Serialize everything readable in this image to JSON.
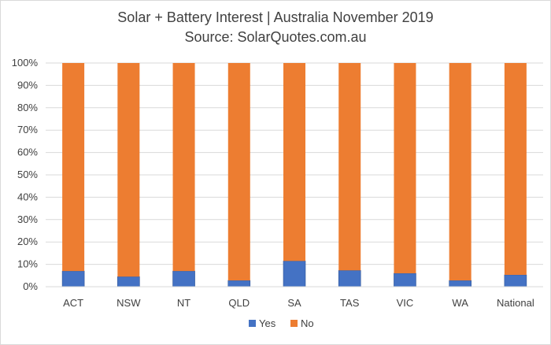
{
  "chart_data": {
    "type": "bar",
    "stacked": true,
    "normalized": true,
    "title": "Solar + Battery Interest  | Australia November 2019",
    "subtitle": "Source: SolarQuotes.com.au",
    "xlabel": "",
    "ylabel": "",
    "categories": [
      "ACT",
      "NSW",
      "NT",
      "QLD",
      "SA",
      "TAS",
      "VIC",
      "WA",
      "National"
    ],
    "series": [
      {
        "name": "Yes",
        "color": "#4472c4",
        "values": [
          7.0,
          4.5,
          7.0,
          2.8,
          11.5,
          7.3,
          6.0,
          2.8,
          5.3
        ]
      },
      {
        "name": "No",
        "color": "#ed7d31",
        "values": [
          93.0,
          95.5,
          93.0,
          97.2,
          88.5,
          92.7,
          94.0,
          97.2,
          94.7
        ]
      }
    ],
    "ylim": [
      0,
      100
    ],
    "yticks": [
      "0%",
      "10%",
      "20%",
      "30%",
      "40%",
      "50%",
      "60%",
      "70%",
      "80%",
      "90%",
      "100%"
    ],
    "grid": true,
    "legend_position": "bottom"
  }
}
